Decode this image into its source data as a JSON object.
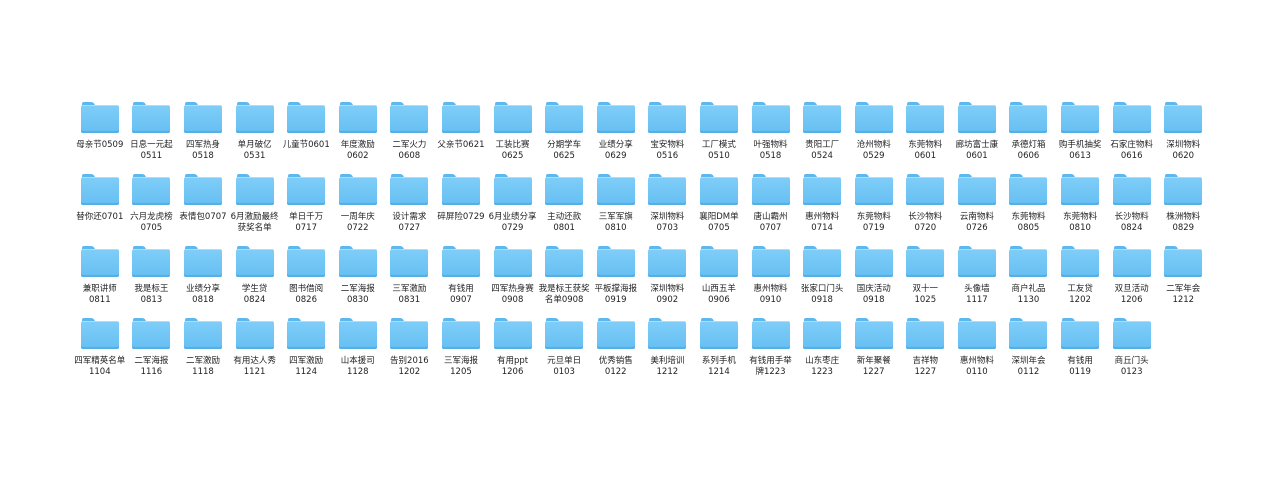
{
  "folder_color": "#6ec6f5",
  "items": [
    "母亲节0509",
    "日息一元起\n0511",
    "四军热身\n0518",
    "单月破亿\n0531",
    "儿童节0601",
    "年度激励\n0602",
    "二军火力\n0608",
    "父亲节0621",
    "工装比赛\n0625",
    "分期学车\n0625",
    "业绩分享\n0629",
    "宝安物料\n0516",
    "工厂模式\n0510",
    "叶强物料\n0518",
    "贵阳工厂\n0524",
    "沧州物料\n0529",
    "东莞物料\n0601",
    "廊坊富士康\n0601",
    "承德灯箱\n0606",
    "购手机抽奖\n0613",
    "石家庄物料\n0616",
    "深圳物料\n0620",
    "替你还0701",
    "六月龙虎榜\n0705",
    "表情包0707",
    "6月激励最终\n获奖名单",
    "单日千万\n0717",
    "一周年庆\n0722",
    "设计需求\n0727",
    "碎屏险0729",
    "6月业绩分享\n0729",
    "主动还款\n0801",
    "三军军旗\n0810",
    "深圳物料\n0703",
    "襄阳DM单\n0705",
    "唐山霸州\n0707",
    "惠州物料\n0714",
    "东莞物料\n0719",
    "长沙物料\n0720",
    "云南物料\n0726",
    "东莞物料\n0805",
    "东莞物料\n0810",
    "长沙物料\n0824",
    "株洲物料\n0829",
    "兼职讲师\n0811",
    "我是标王\n0813",
    "业绩分享\n0818",
    "学生贷\n0824",
    "图书借阅\n0826",
    "二军海报\n0830",
    "三军激励\n0831",
    "有钱用\n0907",
    "四军热身赛\n0908",
    "我是标王获奖\n名单0908",
    "平板撑海报\n0919",
    "深圳物料\n0902",
    "山西五羊\n0906",
    "惠州物料\n0910",
    "张家口门头\n0918",
    "国庆活动\n0918",
    "双十一\n1025",
    "头像墙\n1117",
    "商户礼品\n1130",
    "工友贷\n1202",
    "双旦活动\n1206",
    "二军年会\n1212",
    "四军精英名单\n1104",
    "二军海报\n1116",
    "二军激励\n1118",
    "有用达人秀\n1121",
    "四军激励\n1124",
    "山本援司\n1128",
    "告别2016\n1202",
    "三军海报\n1205",
    "有用ppt\n1206",
    "元旦单日\n0103",
    "优秀销售\n0122",
    "美利培训\n1212",
    "系列手机\n1214",
    "有钱用手举\n牌1223",
    "山东枣庄\n1223",
    "新年聚餐\n1227",
    "吉祥物\n1227",
    "惠州物料\n0110",
    "深圳年会\n0112",
    "有钱用\n0119",
    "商丘门头\n0123"
  ]
}
